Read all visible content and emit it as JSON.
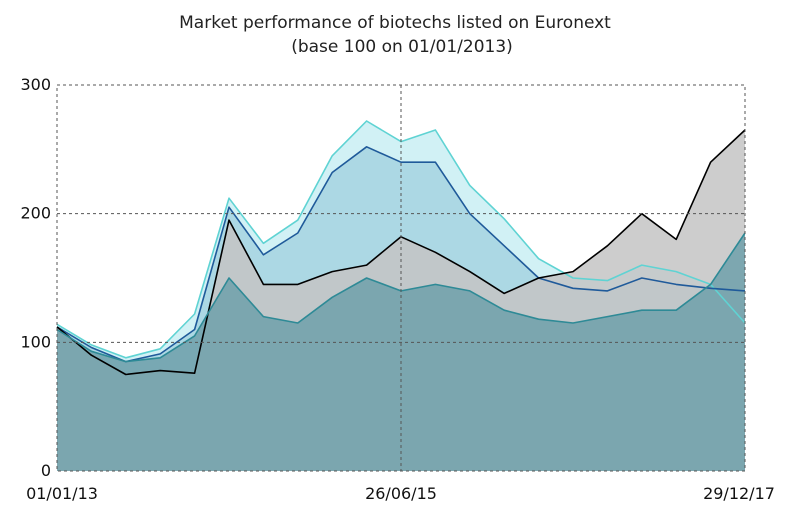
{
  "chart_data": {
    "type": "area",
    "title": "Market performance of biotechs listed on Euronext",
    "subtitle": "(base 100 on 01/01/2013)",
    "xlabel": "",
    "ylabel": "",
    "ylim": [
      0,
      300
    ],
    "yticks": [
      "0",
      "100",
      "200",
      "300"
    ],
    "xticks": [
      "01/01/13",
      "26/06/15",
      "29/12/17"
    ],
    "xtick_positions": [
      0,
      1,
      2
    ],
    "grid": true,
    "legend": "none",
    "x": [
      "2013-01",
      "2013-04",
      "2013-07",
      "2013-10",
      "2014-01",
      "2014-04",
      "2014-07",
      "2014-10",
      "2015-01",
      "2015-04",
      "2015-06",
      "2015-09",
      "2015-12",
      "2016-03",
      "2016-06",
      "2016-09",
      "2016-12",
      "2017-03",
      "2017-06",
      "2017-09",
      "2017-12"
    ],
    "series": [
      {
        "color": "#5fd3d3",
        "fill": "#c9eef3",
        "values": [
          114,
          98,
          88,
          95,
          122,
          212,
          177,
          195,
          245,
          272,
          256,
          265,
          222,
          196,
          165,
          150,
          148,
          160,
          155,
          145,
          115
        ]
      },
      {
        "color": "#1f5a9a",
        "fill": "#a6d4e0",
        "values": [
          112,
          96,
          85,
          91,
          110,
          205,
          168,
          185,
          232,
          252,
          240,
          240,
          200,
          175,
          150,
          142,
          140,
          150,
          145,
          142,
          140
        ]
      },
      {
        "color": "#000000",
        "fill": "#c4c4c4",
        "values": [
          112,
          90,
          75,
          78,
          76,
          195,
          145,
          145,
          155,
          160,
          182,
          170,
          155,
          138,
          150,
          155,
          175,
          200,
          180,
          240,
          265
        ]
      },
      {
        "color": "#2e8a96",
        "fill": "#6fa0aa",
        "values": [
          110,
          93,
          85,
          88,
          105,
          150,
          120,
          115,
          135,
          150,
          140,
          145,
          140,
          125,
          118,
          115,
          120,
          125,
          125,
          145,
          185
        ]
      }
    ]
  }
}
